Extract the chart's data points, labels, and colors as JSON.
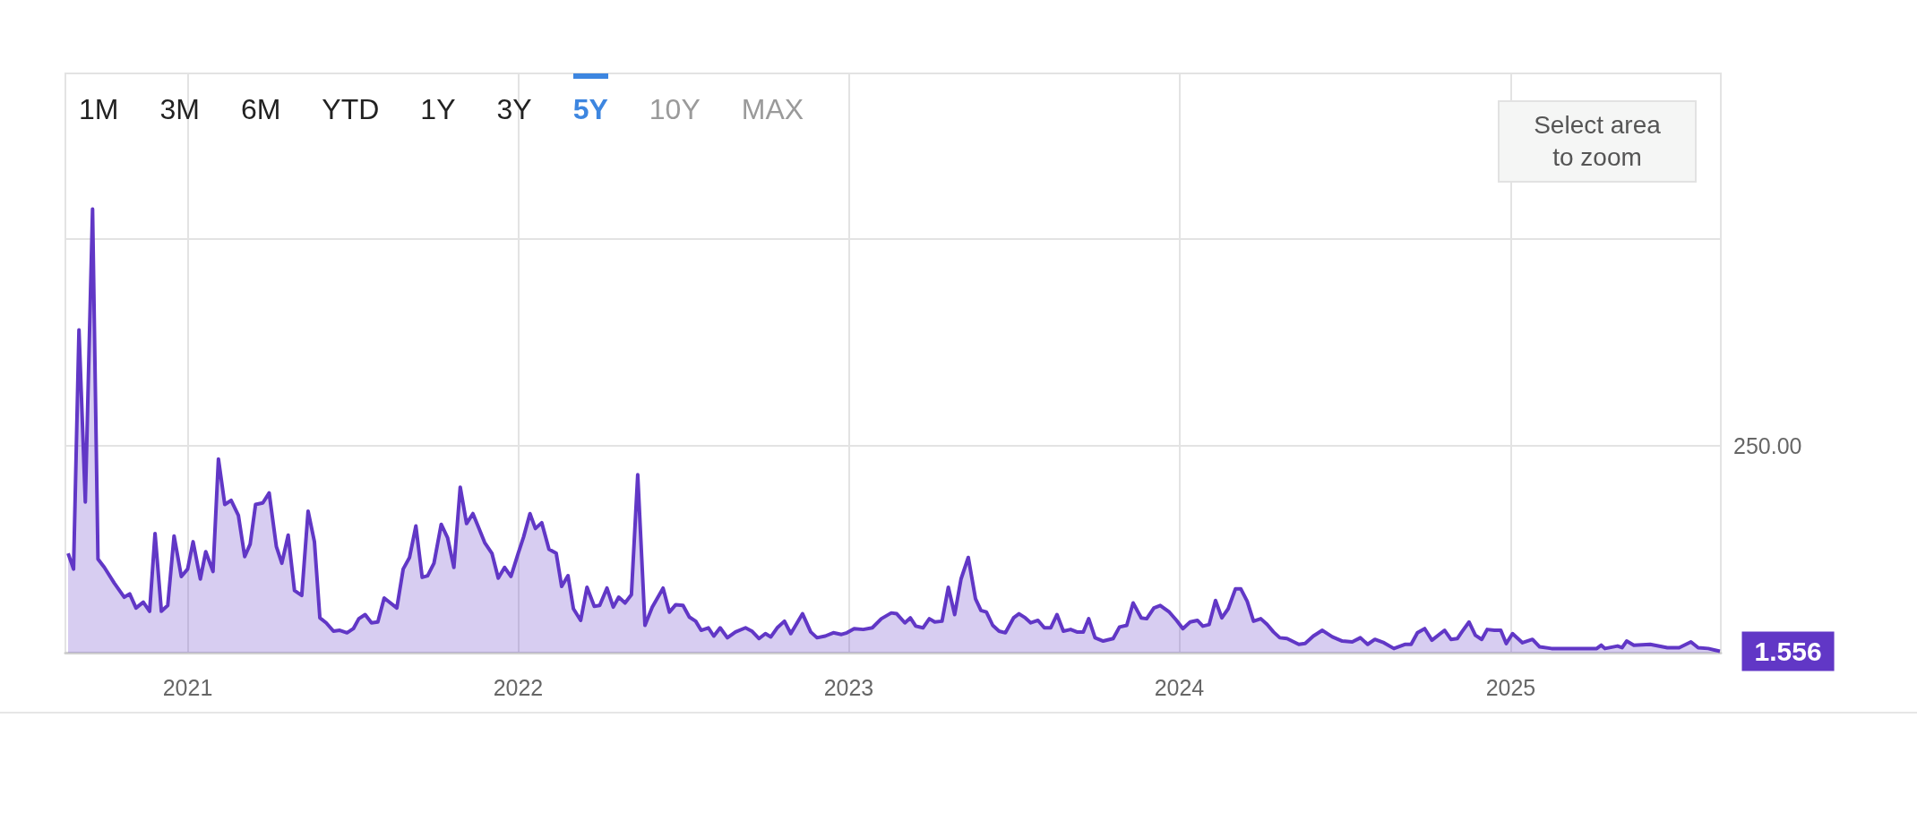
{
  "chart_data": {
    "type": "area",
    "marker": "none",
    "grid": true,
    "xlim": [
      "2020-08-19",
      "2025-08-21"
    ],
    "xticks": [
      {
        "value": "2021-01-01",
        "label": "2021"
      },
      {
        "value": "2022-01-01",
        "label": "2022"
      },
      {
        "value": "2023-01-01",
        "label": "2023"
      },
      {
        "value": "2024-01-01",
        "label": "2024"
      },
      {
        "value": "2025-01-01",
        "label": "2025"
      }
    ],
    "ylim": [
      0,
      700
    ],
    "yticks": [
      {
        "value": 0,
        "label": null
      },
      {
        "value": 250,
        "label": "250.00"
      },
      {
        "value": 500,
        "label": null
      }
    ],
    "annotations": [
      "1M",
      "3M",
      "6M",
      "YTD",
      "1Y",
      "3Y",
      "5Y",
      "10Y",
      "MAX",
      "Select area to zoom",
      {
        "text": "1.556",
        "x": "2025-08-20",
        "y": 1.556
      }
    ],
    "x": [
      "2020-08-22",
      "2020-08-28",
      "2020-09-03",
      "2020-09-10",
      "2020-09-18",
      "2020-09-24",
      "2020-10-01",
      "2020-10-12",
      "2020-10-23",
      "2020-10-29",
      "2020-11-05",
      "2020-11-13",
      "2020-11-20",
      "2020-11-26",
      "2020-12-03",
      "2020-12-10",
      "2020-12-17",
      "2020-12-25",
      "2021-01-01",
      "2021-01-07",
      "2021-01-15",
      "2021-01-21",
      "2021-01-29",
      "2021-02-04",
      "2021-02-11",
      "2021-02-18",
      "2021-02-26",
      "2021-03-05",
      "2021-03-11",
      "2021-03-17",
      "2021-03-25",
      "2021-04-01",
      "2021-04-09",
      "2021-04-15",
      "2021-04-22",
      "2021-04-29",
      "2021-05-07",
      "2021-05-14",
      "2021-05-21",
      "2021-05-27",
      "2021-06-03",
      "2021-06-11",
      "2021-06-18",
      "2021-06-26",
      "2021-07-03",
      "2021-07-09",
      "2021-07-16",
      "2021-07-23",
      "2021-07-30",
      "2021-08-06",
      "2021-08-20",
      "2021-08-27",
      "2021-09-03",
      "2021-09-10",
      "2021-09-17",
      "2021-09-23",
      "2021-09-30",
      "2021-10-08",
      "2021-10-15",
      "2021-10-22",
      "2021-10-29",
      "2021-11-05",
      "2021-11-12",
      "2021-11-18",
      "2021-11-25",
      "2021-12-03",
      "2021-12-10",
      "2021-12-17",
      "2021-12-24",
      "2022-01-01",
      "2022-01-07",
      "2022-01-14",
      "2022-01-20",
      "2022-01-27",
      "2022-02-04",
      "2022-02-12",
      "2022-02-18",
      "2022-02-25",
      "2022-03-03",
      "2022-03-11",
      "2022-03-18",
      "2022-03-26",
      "2022-04-01",
      "2022-04-09",
      "2022-04-16",
      "2022-04-22",
      "2022-04-29",
      "2022-05-06",
      "2022-05-13",
      "2022-05-21",
      "2022-05-29",
      "2022-06-10",
      "2022-06-17",
      "2022-06-24",
      "2022-07-02",
      "2022-07-09",
      "2022-07-16",
      "2022-07-22",
      "2022-07-30",
      "2022-08-05",
      "2022-08-12",
      "2022-08-20",
      "2022-08-29",
      "2022-09-09",
      "2022-09-16",
      "2022-09-24",
      "2022-10-01",
      "2022-10-07",
      "2022-10-14",
      "2022-10-22",
      "2022-10-29",
      "2022-11-11",
      "2022-11-20",
      "2022-11-27",
      "2022-12-06",
      "2022-12-15",
      "2022-12-24",
      "2022-12-30",
      "2023-01-07",
      "2023-01-17",
      "2023-01-27",
      "2023-02-06",
      "2023-02-17",
      "2023-02-23",
      "2023-03-04",
      "2023-03-10",
      "2023-03-16",
      "2023-03-24",
      "2023-03-31",
      "2023-04-06",
      "2023-04-14",
      "2023-04-21",
      "2023-04-28",
      "2023-05-05",
      "2023-05-13",
      "2023-05-21",
      "2023-05-27",
      "2023-06-02",
      "2023-06-09",
      "2023-06-16",
      "2023-06-23",
      "2023-07-02",
      "2023-07-08",
      "2023-07-15",
      "2023-07-21",
      "2023-07-29",
      "2023-08-05",
      "2023-08-12",
      "2023-08-19",
      "2023-08-26",
      "2023-09-03",
      "2023-09-10",
      "2023-09-17",
      "2023-09-23",
      "2023-09-30",
      "2023-10-09",
      "2023-10-20",
      "2023-10-27",
      "2023-11-04",
      "2023-11-11",
      "2023-11-20",
      "2023-11-26",
      "2023-12-04",
      "2023-12-11",
      "2023-12-21",
      "2023-12-29",
      "2024-01-05",
      "2024-01-13",
      "2024-01-21",
      "2024-01-27",
      "2024-02-03",
      "2024-02-10",
      "2024-02-17",
      "2024-02-24",
      "2024-03-03",
      "2024-03-09",
      "2024-03-16",
      "2024-03-23",
      "2024-03-31",
      "2024-04-07",
      "2024-04-14",
      "2024-04-21",
      "2024-04-29",
      "2024-05-12",
      "2024-05-19",
      "2024-05-28",
      "2024-06-07",
      "2024-06-18",
      "2024-06-29",
      "2024-07-10",
      "2024-07-19",
      "2024-07-27",
      "2024-08-04",
      "2024-08-14",
      "2024-08-25",
      "2024-09-06",
      "2024-09-13",
      "2024-09-20",
      "2024-09-28",
      "2024-10-06",
      "2024-10-20",
      "2024-10-27",
      "2024-11-03",
      "2024-11-08",
      "2024-11-16",
      "2024-11-23",
      "2024-11-30",
      "2024-12-06",
      "2024-12-14",
      "2024-12-21",
      "2024-12-27",
      "2025-01-03",
      "2025-01-14",
      "2025-01-25",
      "2025-02-02",
      "2025-02-15",
      "2025-03-06",
      "2025-04-06",
      "2025-04-11",
      "2025-04-15",
      "2025-04-29",
      "2025-05-04",
      "2025-05-09",
      "2025-05-17",
      "2025-06-04",
      "2025-06-23",
      "2025-07-06",
      "2025-07-19",
      "2025-07-27",
      "2025-08-07",
      "2025-08-20"
    ],
    "series": [
      {
        "color": "#6137c6",
        "values": [
          120,
          101,
          390,
          182,
          536,
          113,
          103,
          84,
          67,
          71,
          54,
          61,
          50,
          144,
          50,
          57,
          141,
          92,
          101,
          134,
          89,
          122,
          98,
          234,
          179,
          184,
          166,
          116,
          131,
          179,
          181,
          193,
          128,
          108,
          142,
          75,
          69,
          171,
          134,
          42,
          36,
          26,
          27,
          24,
          29,
          41,
          46,
          36,
          37,
          66,
          54,
          101,
          115,
          153,
          91,
          93,
          108,
          155,
          139,
          103,
          200,
          156,
          168,
          152,
          133,
          120,
          90,
          103,
          92,
          120,
          140,
          168,
          150,
          157,
          125,
          120,
          80,
          93,
          53,
          39,
          79,
          56,
          57,
          78,
          55,
          67,
          60,
          70,
          215,
          33,
          55,
          78,
          49,
          58,
          57,
          43,
          38,
          27,
          30,
          20,
          30,
          18,
          25,
          30,
          26,
          17,
          23,
          19,
          30,
          38,
          23,
          47,
          25,
          18,
          20,
          24,
          22,
          24,
          29,
          28,
          30,
          41,
          48,
          47,
          36,
          42,
          32,
          30,
          41,
          37,
          38,
          79,
          46,
          89,
          115,
          65,
          51,
          49,
          33,
          26,
          24,
          42,
          47,
          42,
          36,
          39,
          30,
          30,
          46,
          26,
          28,
          25,
          25,
          41,
          18,
          14,
          17,
          31,
          33,
          60,
          42,
          41,
          54,
          57,
          49,
          39,
          29,
          37,
          39,
          32,
          34,
          63,
          42,
          53,
          77,
          77,
          62,
          38,
          41,
          34,
          25,
          18,
          17,
          10,
          11,
          20,
          27,
          19,
          14,
          13,
          18,
          10,
          16,
          12,
          5,
          10,
          10,
          24,
          29,
          15,
          27,
          16,
          17,
          25,
          37,
          21,
          16,
          28,
          27,
          27,
          11,
          23,
          12,
          16,
          7,
          5,
          5,
          5,
          9,
          5,
          8,
          6,
          14,
          9,
          10,
          6,
          6,
          13,
          6,
          5,
          1.556
        ]
      }
    ]
  }
}
